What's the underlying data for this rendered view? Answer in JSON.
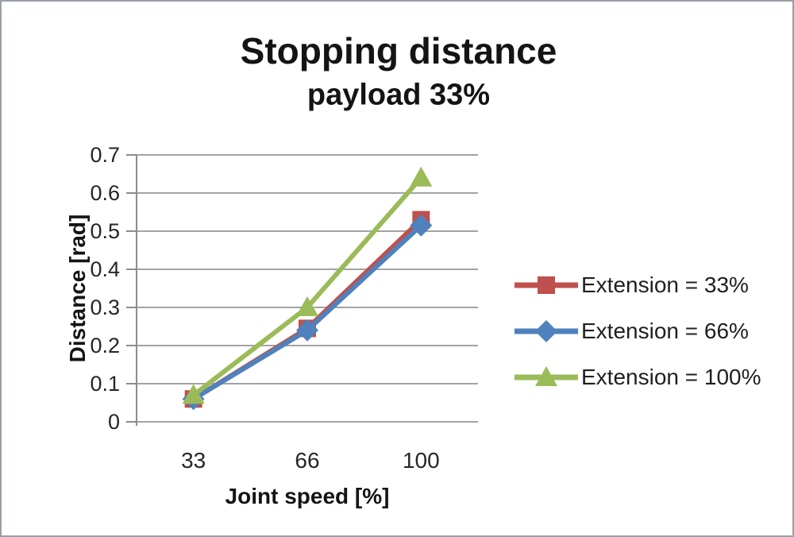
{
  "title": "Stopping distance",
  "subtitle": "payload 33%",
  "chart_data": {
    "type": "line",
    "x": [
      "33",
      "66",
      "100"
    ],
    "xlabel": "Joint speed [%]",
    "ylabel": "Distance [rad]",
    "ylim": [
      0,
      0.7
    ],
    "yticks": [
      0,
      0.1,
      0.2,
      0.3,
      0.4,
      0.5,
      0.6,
      0.7
    ],
    "grid": true,
    "legend_position": "right-outside",
    "series": [
      {
        "name": "Extension = 33%",
        "marker": "square",
        "color": "#C0504D",
        "values": [
          0.06,
          0.245,
          0.53
        ]
      },
      {
        "name": "Extension = 66%",
        "marker": "diamond",
        "color": "#4F81BD",
        "values": [
          0.06,
          0.24,
          0.515
        ]
      },
      {
        "name": "Extension = 100%",
        "marker": "triangle",
        "color": "#9BBB59",
        "values": [
          0.07,
          0.3,
          0.64
        ]
      }
    ],
    "colors": {
      "gridline": "#a3a3a3",
      "axis": "#8c8c8c",
      "text": "#262626",
      "frame_border": "#99a0a8",
      "background": "#ffffff"
    }
  }
}
